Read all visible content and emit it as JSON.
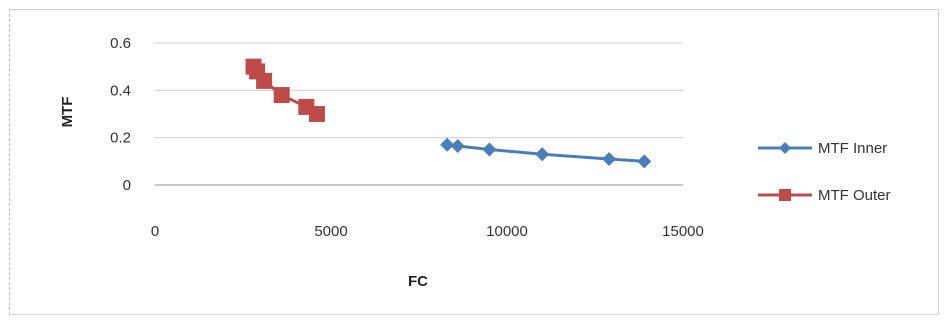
{
  "chart_data": {
    "type": "scatter",
    "title": "",
    "xlabel": "FC",
    "ylabel": "MTF",
    "xlim": [
      0,
      15000
    ],
    "ylim": [
      0,
      0.6
    ],
    "xticks": [
      "0",
      "5000",
      "10000",
      "15000"
    ],
    "yticks": [
      "0",
      "0.2",
      "0.4",
      "0.6"
    ],
    "grid": "horizontal",
    "legend_position": "right",
    "series": [
      {
        "name": "MTF Inner",
        "color": "#4a7ebb",
        "marker": "diamond",
        "x": [
          8300,
          8600,
          9500,
          11000,
          12900,
          13900
        ],
        "y": [
          0.17,
          0.165,
          0.15,
          0.13,
          0.11,
          0.1
        ]
      },
      {
        "name": "MTF Outer",
        "color": "#be4b48",
        "marker": "square",
        "x": [
          2800,
          2900,
          3100,
          3600,
          4300,
          4600
        ],
        "y": [
          0.5,
          0.48,
          0.44,
          0.38,
          0.33,
          0.3
        ]
      }
    ]
  }
}
